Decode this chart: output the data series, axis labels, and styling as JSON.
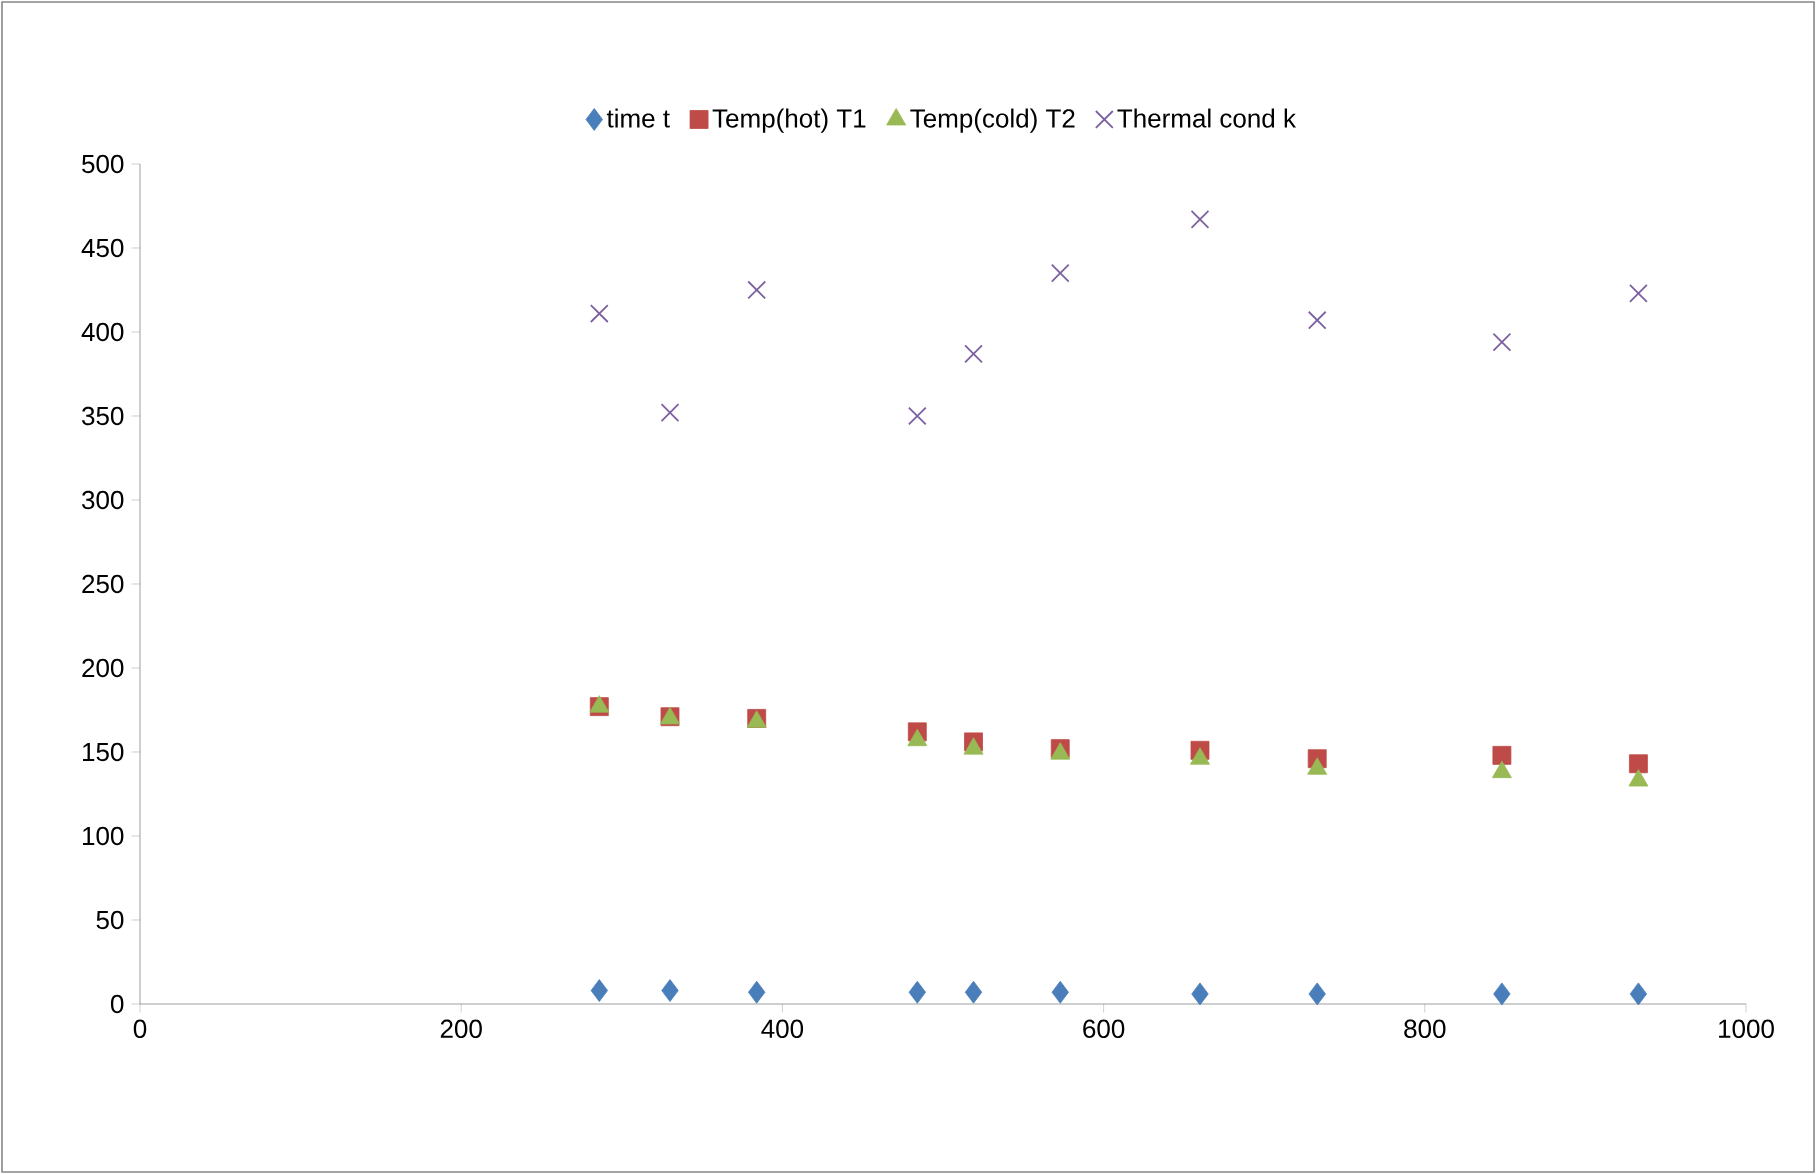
{
  "chart_data": {
    "type": "scatter",
    "x": [
      286,
      330,
      384,
      484,
      519,
      573,
      660,
      733,
      848,
      933
    ],
    "series": [
      {
        "name": "time t",
        "color": "#4a7ebb",
        "marker": "diamond",
        "values": [
          8,
          8,
          7,
          7,
          7,
          7,
          6,
          6,
          6,
          6
        ]
      },
      {
        "name": "Temp(hot) T1",
        "color": "#be4b48",
        "marker": "square",
        "values": [
          177,
          171,
          170,
          162,
          156,
          152,
          151,
          146,
          148,
          143
        ]
      },
      {
        "name": "Temp(cold) T2",
        "color": "#98b954",
        "marker": "triangle",
        "values": [
          177,
          170,
          168,
          157,
          152,
          149,
          146,
          140,
          138,
          133
        ]
      },
      {
        "name": "Thermal cond k",
        "color": "#7d60a0",
        "marker": "cross",
        "values": [
          411,
          352,
          425,
          350,
          387,
          435,
          467,
          407,
          394,
          423
        ]
      }
    ],
    "xlim": [
      0,
      1000
    ],
    "xticks": [
      0,
      200,
      400,
      600,
      800,
      1000
    ],
    "ylim": [
      0,
      500
    ],
    "yticks": [
      0,
      50,
      100,
      150,
      200,
      250,
      300,
      350,
      400,
      450,
      500
    ],
    "grid": false,
    "legend": "top"
  }
}
